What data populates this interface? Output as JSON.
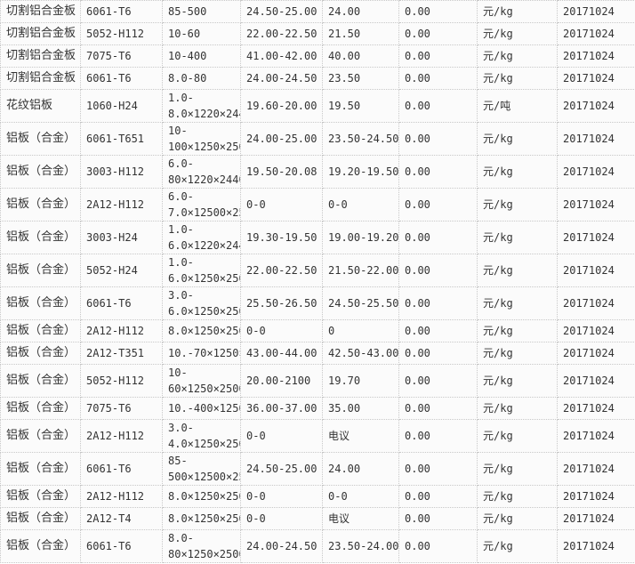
{
  "rows": [
    {
      "name": "切割铝合金板",
      "grade": "6061-T6",
      "spec": [
        "85-500"
      ],
      "price": "24.50-25.00",
      "mid": "24.00",
      "change": "0.00",
      "unit": "元/kg",
      "date": "20171024"
    },
    {
      "name": "切割铝合金板",
      "grade": "5052-H112",
      "spec": [
        "10-60"
      ],
      "price": "22.00-22.50",
      "mid": "21.50",
      "change": "0.00",
      "unit": "元/kg",
      "date": "20171024"
    },
    {
      "name": "切割铝合金板",
      "grade": "7075-T6",
      "spec": [
        "10-400"
      ],
      "price": "41.00-42.00",
      "mid": "40.00",
      "change": "0.00",
      "unit": "元/kg",
      "date": "20171024"
    },
    {
      "name": "切割铝合金板",
      "grade": "6061-T6",
      "spec": [
        "8.0-80"
      ],
      "price": "24.00-24.50",
      "mid": "23.50",
      "change": "0.00",
      "unit": "元/kg",
      "date": "20171024"
    },
    {
      "name": "花纹铝板",
      "grade": "1060-H24",
      "spec": [
        "1.0-",
        "8.0×1220×244"
      ],
      "price": "19.60-20.00",
      "mid": "19.50",
      "change": "0.00",
      "unit": "元/吨",
      "date": "20171024"
    },
    {
      "name": "铝板（合金）",
      "grade": "6061-T651",
      "spec": [
        "10-",
        "100×1250×250"
      ],
      "price": "24.00-25.00",
      "mid": "23.50-24.50",
      "change": "0.00",
      "unit": "元/kg",
      "date": "20171024"
    },
    {
      "name": "铝板（合金）",
      "grade": "3003-H112",
      "spec": [
        "6.0-",
        "80×1220×2440"
      ],
      "price": "19.50-20.08",
      "mid": "19.20-19.50",
      "change": "0.00",
      "unit": "元/kg",
      "date": "20171024"
    },
    {
      "name": "铝板（合金）",
      "grade": "2A12-H112",
      "spec": [
        "6.0-",
        "7.0×12500×25"
      ],
      "price": "0-0",
      "mid": "0-0",
      "change": "0.00",
      "unit": "元/kg",
      "date": "20171024"
    },
    {
      "name": "铝板（合金）",
      "grade": "3003-H24",
      "spec": [
        "1.0-",
        "6.0×1220×244"
      ],
      "price": "19.30-19.50",
      "mid": "19.00-19.20",
      "change": "0.00",
      "unit": "元/kg",
      "date": "20171024"
    },
    {
      "name": "铝板（合金）",
      "grade": "5052-H24",
      "spec": [
        "1.0-",
        "6.0×1250×250"
      ],
      "price": "22.00-22.50",
      "mid": "21.50-22.00",
      "change": "0.00",
      "unit": "元/kg",
      "date": "20171024"
    },
    {
      "name": "铝板（合金）",
      "grade": "6061-T6",
      "spec": [
        "3.0-",
        "6.0×1250×250"
      ],
      "price": "25.50-26.50",
      "mid": "24.50-25.50",
      "change": "0.00",
      "unit": "元/kg",
      "date": "20171024"
    },
    {
      "name": "铝板（合金）",
      "grade": "2A12-H112",
      "spec": [
        "8.0×1250×250"
      ],
      "price": "0-0",
      "mid": "0",
      "change": "0.00",
      "unit": "元/kg",
      "date": "20171024"
    },
    {
      "name": "铝板（合金）",
      "grade": "2A12-T351",
      "spec": [
        "10.-70×1250×"
      ],
      "price": "43.00-44.00",
      "mid": "42.50-43.00",
      "change": "0.00",
      "unit": "元/kg",
      "date": "20171024"
    },
    {
      "name": "铝板（合金）",
      "grade": "5052-H112",
      "spec": [
        "10-",
        "60×1250×2500"
      ],
      "price": "20.00-2100",
      "mid": "19.70",
      "change": "0.00",
      "unit": "元/kg",
      "date": "20171024"
    },
    {
      "name": "铝板（合金）",
      "grade": "7075-T6",
      "spec": [
        "10.-400×1250×"
      ],
      "price": "36.00-37.00",
      "mid": "35.00",
      "change": "0.00",
      "unit": "元/kg",
      "date": "20171024"
    },
    {
      "name": "铝板（合金）",
      "grade": "2A12-H112",
      "spec": [
        "3.0-",
        "4.0×1250×250"
      ],
      "price": "0-0",
      "mid": "电议",
      "change": "0.00",
      "unit": "元/kg",
      "date": "20171024"
    },
    {
      "name": "铝板（合金）",
      "grade": "6061-T6",
      "spec": [
        "85-",
        "500×12500×25"
      ],
      "price": "24.50-25.00",
      "mid": "24.00",
      "change": "0.00",
      "unit": "元/kg",
      "date": "20171024"
    },
    {
      "name": "铝板（合金）",
      "grade": "2A12-H112",
      "spec": [
        "8.0×1250×250"
      ],
      "price": "0-0",
      "mid": "0-0",
      "change": "0.00",
      "unit": "元/kg",
      "date": "20171024"
    },
    {
      "name": "铝板（合金）",
      "grade": "2A12-T4",
      "spec": [
        "8.0×1250×250"
      ],
      "price": "0-0",
      "mid": "电议",
      "change": "0.00",
      "unit": "元/kg",
      "date": "20171024"
    },
    {
      "name": "铝板（合金）",
      "grade": "6061-T6",
      "spec": [
        "8.0-",
        "80×1250×2500"
      ],
      "price": "24.00-24.50",
      "mid": "23.50-24.00",
      "change": "0.00",
      "unit": "元/kg",
      "date": "20171024"
    }
  ]
}
